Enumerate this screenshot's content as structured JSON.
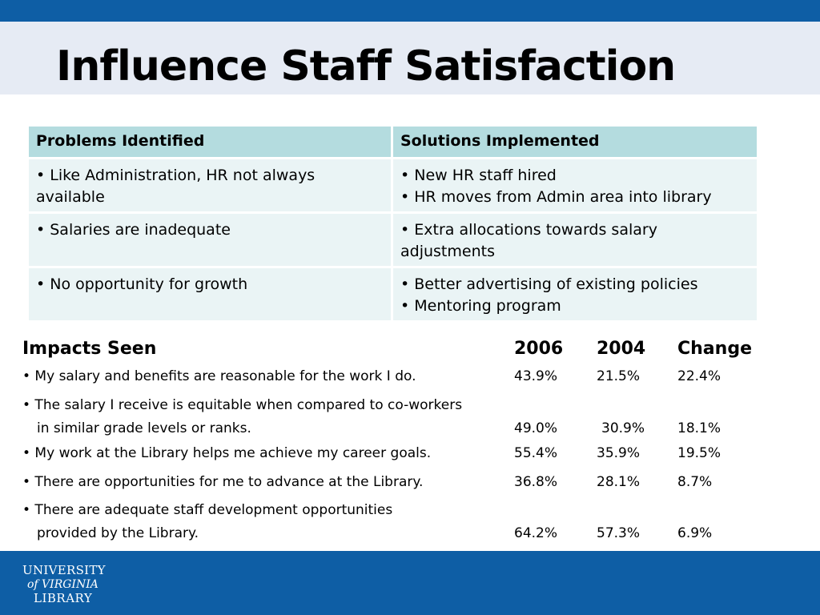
{
  "slide": {
    "title": "Influence Staff Satisfaction"
  },
  "problems_table": {
    "headers": [
      "Problems Identified",
      "Solutions Implemented"
    ],
    "rows": [
      {
        "problem": [
          "• Like Administration, HR not always",
          "available"
        ],
        "solution": [
          "• New HR staff hired",
          "• HR moves from Admin area into library"
        ]
      },
      {
        "problem": [
          "• Salaries are inadequate"
        ],
        "solution": [
          "• Extra allocations towards salary",
          "adjustments"
        ]
      },
      {
        "problem": [
          "• No opportunity for growth"
        ],
        "solution": [
          "• Better advertising of existing policies",
          "• Mentoring program"
        ]
      }
    ]
  },
  "impacts": {
    "header": {
      "label": "Impacts Seen",
      "col_2006": "2006",
      "col_2004": "2004",
      "col_change": "Change"
    },
    "rows": [
      {
        "lines": [
          "• My salary and benefits are reasonable for the work I do."
        ],
        "v2006": "43.9%",
        "v2004": "21.5%",
        "change": "22.4%"
      },
      {
        "lines": [
          "• The salary I receive is equitable when compared to co-workers",
          "in similar grade levels or ranks."
        ],
        "v2006": "49.0%",
        "v2004": "30.9%",
        "change": "18.1%"
      },
      {
        "lines": [
          "• My work at the Library helps me achieve my career goals."
        ],
        "v2006": "55.4%",
        "v2004": "35.9%",
        "change": "19.5%"
      },
      {
        "lines": [
          "• There are opportunities for me to advance at the Library."
        ],
        "v2006": "36.8%",
        "v2004": "28.1%",
        "change": "8.7%"
      },
      {
        "lines": [
          "• There are adequate staff development opportunities",
          "provided by the Library."
        ],
        "v2006": "64.2%",
        "v2004": "57.3%",
        "change": "6.9%"
      }
    ]
  },
  "footer": {
    "logo_lines": [
      "UNIVERSITY",
      "of VIRGINIA",
      "LIBRARY"
    ]
  },
  "colors": {
    "brand_blue": "#0e5ea5",
    "title_band": "#e6ebf4",
    "table_header": "#b4dcdf",
    "table_cell": "#eaf4f5"
  }
}
